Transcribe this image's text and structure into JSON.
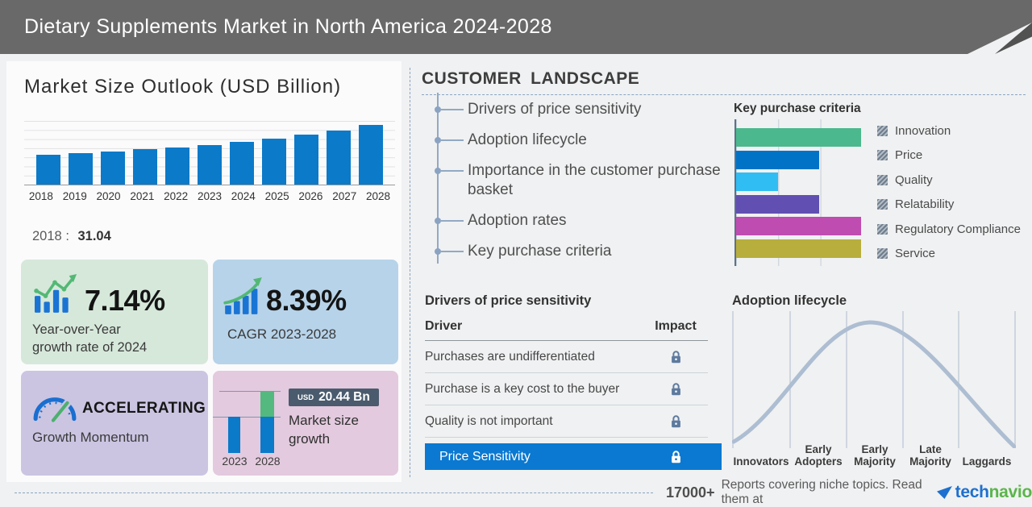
{
  "header": {
    "title": "Dietary Supplements Market in North America 2024-2028"
  },
  "market_size": {
    "title": "Market Size Outlook (USD Billion)",
    "base_label": "2018",
    "base_separator": ":",
    "base_value": "31.04"
  },
  "chart_data": [
    {
      "type": "bar",
      "title": "Market Size Outlook (USD Billion)",
      "ylabel": "USD Billion",
      "categories": [
        "2018",
        "2019",
        "2020",
        "2021",
        "2022",
        "2023",
        "2024",
        "2025",
        "2026",
        "2027",
        "2028"
      ],
      "values": [
        31.04,
        32.8,
        34.5,
        36.4,
        38.6,
        41.2,
        44.2,
        47.6,
        51.5,
        56.1,
        61.7
      ],
      "ylim": [
        0,
        65
      ],
      "grid": true,
      "bar_color": "#0b7ac9",
      "labeled_points": {
        "2018": 31.04
      }
    },
    {
      "type": "bar",
      "orientation": "horizontal",
      "title": "Key purchase criteria",
      "categories": [
        "Innovation",
        "Price",
        "Quality",
        "Relatability",
        "Regulatory Compliance",
        "Service"
      ],
      "values": [
        3,
        2,
        1,
        2,
        3,
        3
      ],
      "xlim": [
        0,
        3
      ],
      "value_units": "relative (gridline units)",
      "colors": [
        "#4bb88e",
        "#0173c7",
        "#30bdf3",
        "#6150b2",
        "#bf4cb1",
        "#b8ae3d"
      ],
      "legend_position": "right"
    },
    {
      "type": "bar",
      "title": "Market size growth",
      "categories": [
        "2023",
        "2028"
      ],
      "values": [
        41.2,
        61.7
      ],
      "growth_annotation": "USD 20.44 Bn",
      "stacked_growth_color": "#53b97f",
      "bar_color": "#0b7ac9"
    },
    {
      "type": "line",
      "title": "Adoption lifecycle",
      "shape": "bell-curve",
      "stages": [
        "Innovators",
        "Early Adopters",
        "Early Majority",
        "Late Majority",
        "Laggards"
      ],
      "line_color": "#adbdd2"
    }
  ],
  "stats": {
    "yoy": {
      "value": "7.14%",
      "label_line1": "Year-over-Year",
      "label_line2": "growth rate of 2024"
    },
    "cagr": {
      "value": "8.39%",
      "label": "CAGR 2023-2028"
    },
    "momentum": {
      "status": "ACCELERATING",
      "label": "Growth Momentum"
    },
    "size_growth": {
      "currency": "USD",
      "amount": "20.44 Bn",
      "label_line1": "Market size",
      "label_line2": "growth",
      "year_start": "2023",
      "year_end": "2028"
    }
  },
  "customer_landscape": {
    "title": "CUSTOMER LANDSCAPE",
    "items": [
      "Drivers of price sensitivity",
      "Adoption lifecycle",
      "Importance in the customer purchase basket",
      "Adoption rates",
      "Key purchase criteria"
    ]
  },
  "key_purchase_criteria": {
    "title": "Key purchase criteria"
  },
  "price_sensitivity": {
    "title": "Drivers of price sensitivity",
    "columns": {
      "driver": "Driver",
      "impact": "Impact"
    },
    "rows": [
      "Purchases are undifferentiated",
      "Purchase is a key cost to the buyer",
      "Quality is not important"
    ],
    "highlight_row": "Price Sensitivity"
  },
  "adoption_lifecycle": {
    "title": "Adoption lifecycle",
    "stages": [
      [
        "Innovators"
      ],
      [
        "Early",
        "Adopters"
      ],
      [
        "Early",
        "Majority"
      ],
      [
        "Late",
        "Majority"
      ],
      [
        "Laggards"
      ]
    ]
  },
  "footer": {
    "count": "17000+",
    "text": "Reports covering niche topics. Read them at",
    "brand_part1": "tech",
    "brand_part2": "navio"
  },
  "colors": {
    "header_bg": "#696969",
    "page_bg": "#f0f1f2",
    "primary_bar_blue": "#0b7ac9",
    "highlight_row_blue": "#0b79d1",
    "badge_bg": "#4a5b6d",
    "box_yoy_bg": "#d6e8da",
    "box_cagr_bg": "#b7d3e9",
    "box_momentum_bg": "#cbc5e2",
    "box_size_bg": "#e3cade",
    "dashed_line": "#8aa5c2",
    "brand_blue": "#1d70cf",
    "brand_green": "#5ab54b"
  }
}
